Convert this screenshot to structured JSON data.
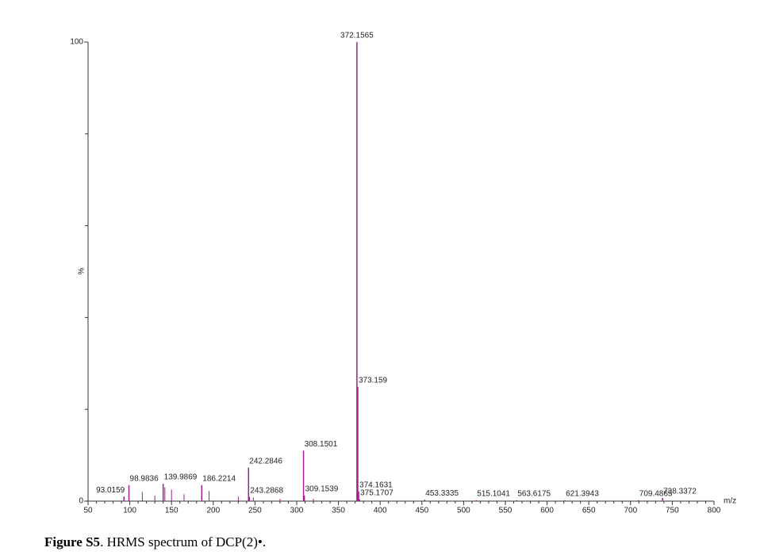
{
  "chart_data": {
    "type": "bar",
    "x": [
      93.0159,
      98.9836,
      139.9869,
      186.2214,
      242.2846,
      243.2868,
      308.1501,
      309.1539,
      372.1565,
      373.159,
      374.1631,
      375.1707,
      453.3335,
      515.1041,
      563.6175,
      621.3943,
      709.4865,
      738.3372
    ],
    "values": [
      1,
      3.5,
      3.8,
      3.5,
      7.3,
      0.9,
      11,
      1.2,
      100,
      24.9,
      2.1,
      0.4,
      0.3,
      0.2,
      0.2,
      0.2,
      0.2,
      0.7
    ],
    "minor_x": [
      115,
      130,
      142,
      150,
      165,
      195,
      230,
      248,
      280,
      320
    ],
    "minor_values": [
      2,
      1.2,
      3,
      2.5,
      1.5,
      2.2,
      1,
      0.8,
      0.5,
      0.5
    ],
    "color": "#a0208f",
    "xlim": [
      50,
      800
    ],
    "xticks": [
      50,
      100,
      150,
      200,
      250,
      300,
      350,
      400,
      450,
      500,
      550,
      600,
      650,
      700,
      750,
      800
    ],
    "ylim": [
      0,
      100
    ],
    "yticks": [
      0,
      100
    ],
    "y_minor_ticks": [
      20,
      40,
      60,
      80
    ],
    "xlabel": "m/z",
    "ylabel": "%",
    "caption": {
      "label": "Figure S5",
      "text": ". HRMS spectrum of DCP(2)•."
    }
  }
}
